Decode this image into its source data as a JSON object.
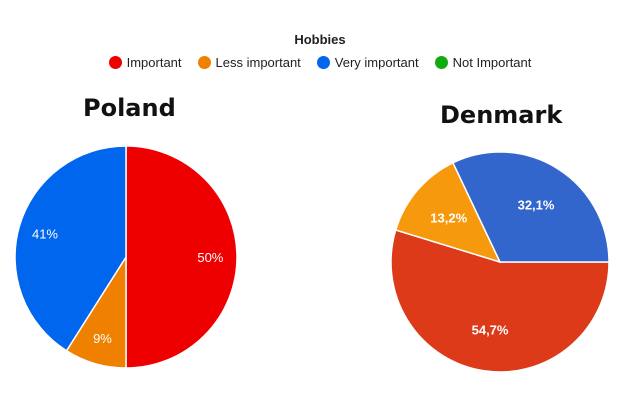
{
  "chart_data": [
    {
      "type": "pie",
      "title": "Poland",
      "legend_title": "Hobbies",
      "legend_position": "top",
      "slices": [
        {
          "label": "Important",
          "value": 50,
          "display": "50%",
          "color": "#ee0000"
        },
        {
          "label": "Less important",
          "value": 9,
          "display": "9%",
          "color": "#f08000"
        },
        {
          "label": "Very important",
          "value": 41,
          "display": "41%",
          "color": "#0066ee"
        }
      ]
    },
    {
      "type": "pie",
      "title": "Denmark",
      "slices": [
        {
          "label": "Important",
          "value": 54.7,
          "display": "54,7%",
          "color": "#dc3a18"
        },
        {
          "label": "Less important",
          "value": 13.2,
          "display": "13,2%",
          "color": "#f7990c"
        },
        {
          "label": "Very important",
          "value": 32.1,
          "display": "32,1%",
          "color": "#3366cc"
        }
      ]
    }
  ],
  "legend": {
    "title": "Hobbies",
    "items": [
      {
        "label": "Important",
        "color": "#ee0000"
      },
      {
        "label": "Less important",
        "color": "#f08000"
      },
      {
        "label": "Very important",
        "color": "#0066ee"
      },
      {
        "label": "Not Important",
        "color": "#11aa11"
      }
    ]
  }
}
